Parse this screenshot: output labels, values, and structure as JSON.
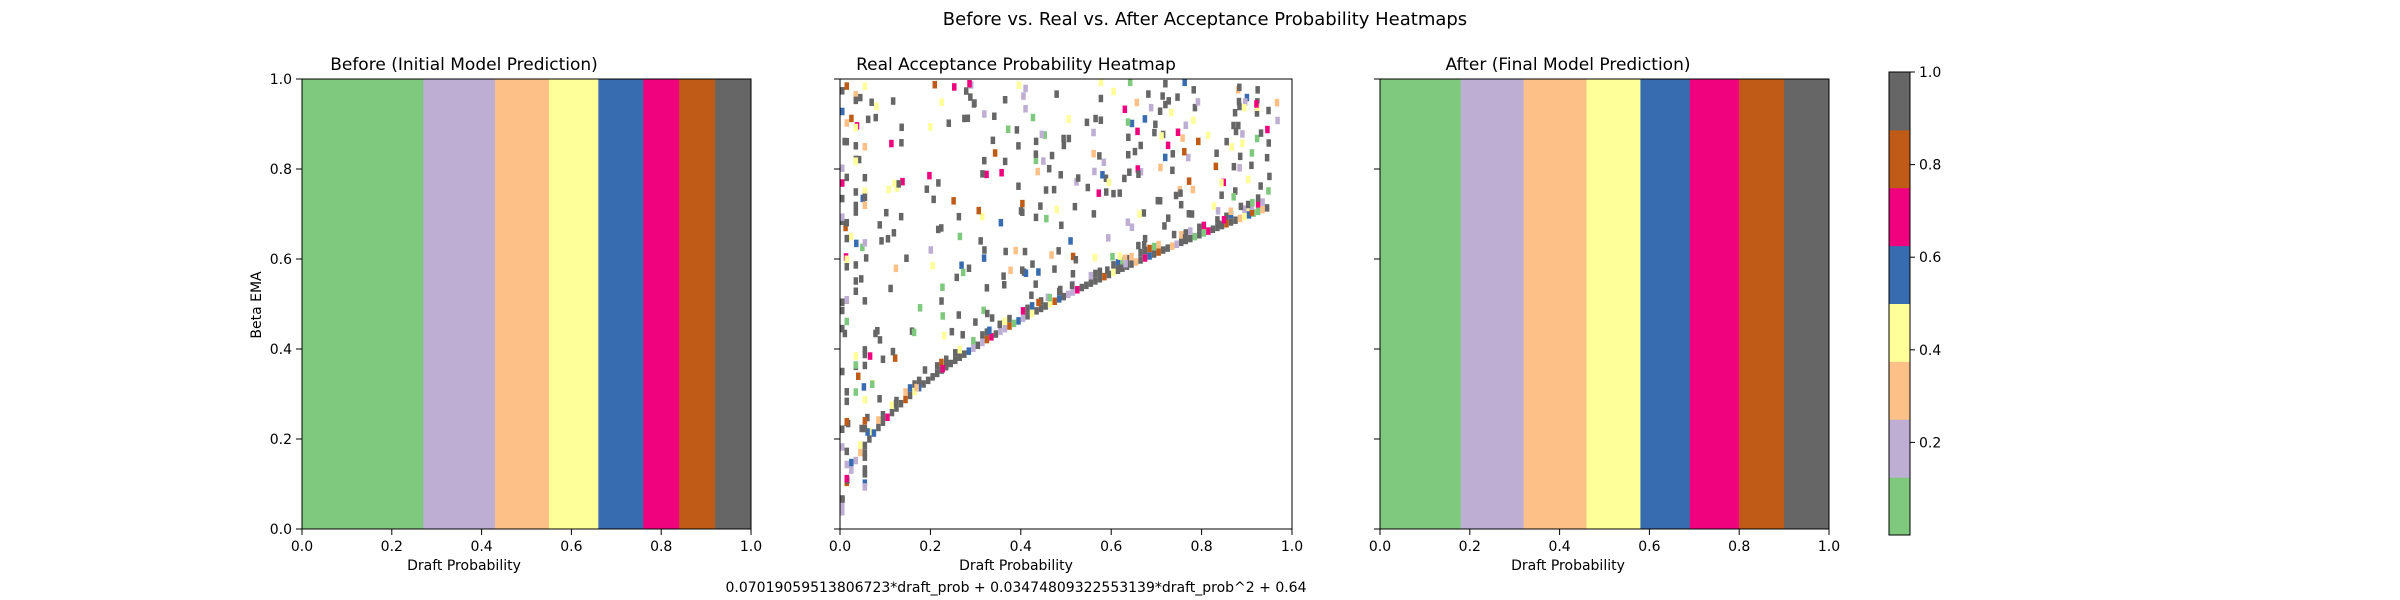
{
  "figure": {
    "suptitle": "Before vs. Real vs. After Acceptance Probability Heatmaps",
    "footer_formula": "0.07019059513806723*draft_prob + 0.03474809322553139*draft_prob^2 + 0.64"
  },
  "chart_data": [
    {
      "type": "heatmap",
      "title": "Before (Initial Model Prediction)",
      "xlabel": "Draft Probability",
      "ylabel": "Beta EMA",
      "xlim": [
        0,
        1
      ],
      "ylim": [
        0,
        1
      ],
      "xticks": [
        "0.0",
        "0.2",
        "0.4",
        "0.6",
        "0.8",
        "1.0"
      ],
      "yticks": [
        "0.0",
        "0.2",
        "0.4",
        "0.6",
        "0.8",
        "1.0"
      ],
      "bands": [
        {
          "x0": 0.0,
          "x1": 0.27,
          "color": "#7fc97f"
        },
        {
          "x0": 0.27,
          "x1": 0.43,
          "color": "#beaed4"
        },
        {
          "x0": 0.43,
          "x1": 0.55,
          "color": "#fdc086"
        },
        {
          "x0": 0.55,
          "x1": 0.66,
          "color": "#ffff99"
        },
        {
          "x0": 0.66,
          "x1": 0.76,
          "color": "#386cb0"
        },
        {
          "x0": 0.76,
          "x1": 0.84,
          "color": "#f0027f"
        },
        {
          "x0": 0.84,
          "x1": 0.92,
          "color": "#bf5b17"
        },
        {
          "x0": 0.92,
          "x1": 1.0,
          "color": "#666666"
        }
      ]
    },
    {
      "type": "heatmap",
      "title": "Real Acceptance Probability Heatmap",
      "xlabel": "Draft Probability",
      "xlim": [
        0,
        1
      ],
      "ylim": [
        0,
        1
      ],
      "xticks": [
        "0.0",
        "0.2",
        "0.4",
        "0.6",
        "0.8",
        "1.0"
      ],
      "sparse_cells": true
    },
    {
      "type": "heatmap",
      "title": "After (Final Model Prediction)",
      "xlabel": "Draft Probability",
      "xlim": [
        0,
        1
      ],
      "ylim": [
        0,
        1
      ],
      "xticks": [
        "0.0",
        "0.2",
        "0.4",
        "0.6",
        "0.8",
        "1.0"
      ],
      "bands": [
        {
          "x0": 0.0,
          "x1": 0.18,
          "color": "#7fc97f"
        },
        {
          "x0": 0.18,
          "x1": 0.32,
          "color": "#beaed4"
        },
        {
          "x0": 0.32,
          "x1": 0.46,
          "color": "#fdc086"
        },
        {
          "x0": 0.46,
          "x1": 0.58,
          "color": "#ffff99"
        },
        {
          "x0": 0.58,
          "x1": 0.69,
          "color": "#386cb0"
        },
        {
          "x0": 0.69,
          "x1": 0.8,
          "color": "#f0027f"
        },
        {
          "x0": 0.8,
          "x1": 0.9,
          "color": "#bf5b17"
        },
        {
          "x0": 0.9,
          "x1": 1.0,
          "color": "#666666"
        }
      ]
    }
  ],
  "colorbar": {
    "colors": [
      "#7fc97f",
      "#beaed4",
      "#fdc086",
      "#ffff99",
      "#386cb0",
      "#f0027f",
      "#bf5b17",
      "#666666"
    ],
    "range": [
      0,
      1
    ],
    "ticks": [
      "0.2",
      "0.4",
      "0.6",
      "0.8",
      "1.0"
    ]
  }
}
